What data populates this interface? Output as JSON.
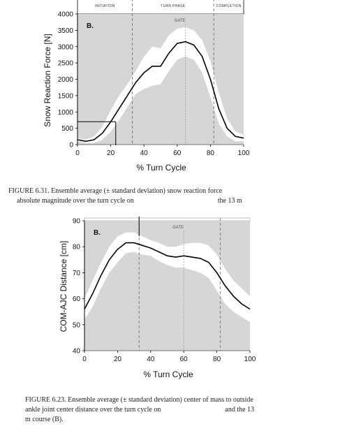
{
  "chart_data": [
    {
      "type": "line",
      "panel_label": "B.",
      "phase_labels": [
        "INITIATION",
        "TURN PHASE",
        "COMPLETION"
      ],
      "gate_label": "GATE",
      "xlabel": "% Turn Cycle",
      "ylabel": "Snow Reaction Force [N]",
      "xlim": [
        0,
        100
      ],
      "ylim": [
        0,
        4000
      ],
      "xticks": [
        "0",
        "20",
        "40",
        "60",
        "80",
        "100"
      ],
      "yticks": [
        "0",
        "500",
        "1000",
        "1500",
        "2000",
        "2500",
        "3000",
        "3500",
        "4000"
      ],
      "phase_bounds": [
        33,
        82
      ],
      "gate_x": 65,
      "reference_level": 700,
      "reference_x": 23,
      "series": [
        {
          "x": [
            0,
            5,
            10,
            15,
            20,
            25,
            30,
            35,
            40,
            45,
            50,
            55,
            60,
            65,
            70,
            75,
            80,
            85,
            90,
            95,
            100
          ],
          "mean": [
            150,
            100,
            150,
            350,
            700,
            1100,
            1500,
            1900,
            2200,
            2400,
            2400,
            2800,
            3100,
            3150,
            3050,
            2700,
            2000,
            1100,
            500,
            250,
            200
          ],
          "upper": [
            200,
            150,
            250,
            550,
            1050,
            1500,
            1850,
            2250,
            2700,
            3000,
            2950,
            3350,
            3550,
            3600,
            3500,
            3200,
            2550,
            1600,
            800,
            400,
            300
          ],
          "lower": [
            100,
            50,
            50,
            150,
            400,
            750,
            1150,
            1550,
            1700,
            1800,
            1850,
            2250,
            2600,
            2700,
            2600,
            2200,
            1450,
            650,
            250,
            100,
            100
          ]
        }
      ]
    },
    {
      "type": "line",
      "panel_label": "B.",
      "gate_label": "GATE",
      "xlabel": "% Turn Cycle",
      "ylabel": "COM-AJC Distance [cm]",
      "xlim": [
        0,
        100
      ],
      "ylim": [
        40,
        90
      ],
      "xticks": [
        "0",
        "20",
        "40",
        "60",
        "80",
        "100"
      ],
      "yticks": [
        "40",
        "50",
        "60",
        "70",
        "80",
        "90"
      ],
      "phase_bounds": [
        33,
        82
      ],
      "gate_x": 60,
      "series": [
        {
          "x": [
            0,
            5,
            10,
            15,
            20,
            25,
            30,
            35,
            40,
            45,
            50,
            55,
            60,
            65,
            70,
            75,
            80,
            85,
            90,
            95,
            100
          ],
          "mean": [
            56,
            62,
            69,
            75,
            79,
            81.5,
            81.5,
            80.5,
            79.5,
            78,
            76.5,
            76,
            76.5,
            76,
            75.5,
            74,
            70,
            65,
            61,
            58,
            56
          ],
          "upper": [
            60,
            67,
            74,
            80,
            84,
            85.5,
            85.5,
            84,
            82.5,
            81.5,
            80,
            80,
            81,
            81.5,
            81.5,
            80.5,
            77,
            71.5,
            67,
            64,
            61
          ],
          "lower": [
            52,
            57,
            64,
            70,
            74,
            77.5,
            78,
            77,
            76.5,
            74.5,
            73,
            72,
            72,
            71,
            70,
            68,
            63,
            58,
            55,
            53,
            51
          ]
        }
      ]
    }
  ],
  "captions": {
    "fig1": {
      "line1": "FIGURE 6.31.  Ensemble average (± standard deviation) snow reaction force",
      "line2a": "absolute magnitude over the turn cycle on",
      "line2b": "the 13 m"
    },
    "fig2": {
      "line1": "FIGURE 6.23.  Ensemble average (± standard deviation) center of mass to outside",
      "line2a": "ankle joint center distance over the turn cycle on",
      "line2b": "and the 13",
      "line3": "m course (B)."
    }
  },
  "colors": {
    "background_band": "#d6d6d6",
    "sd_band": "#ffffff",
    "mean_line": "#000000",
    "phase_divider": "#666666",
    "gate_line": "#999999"
  }
}
